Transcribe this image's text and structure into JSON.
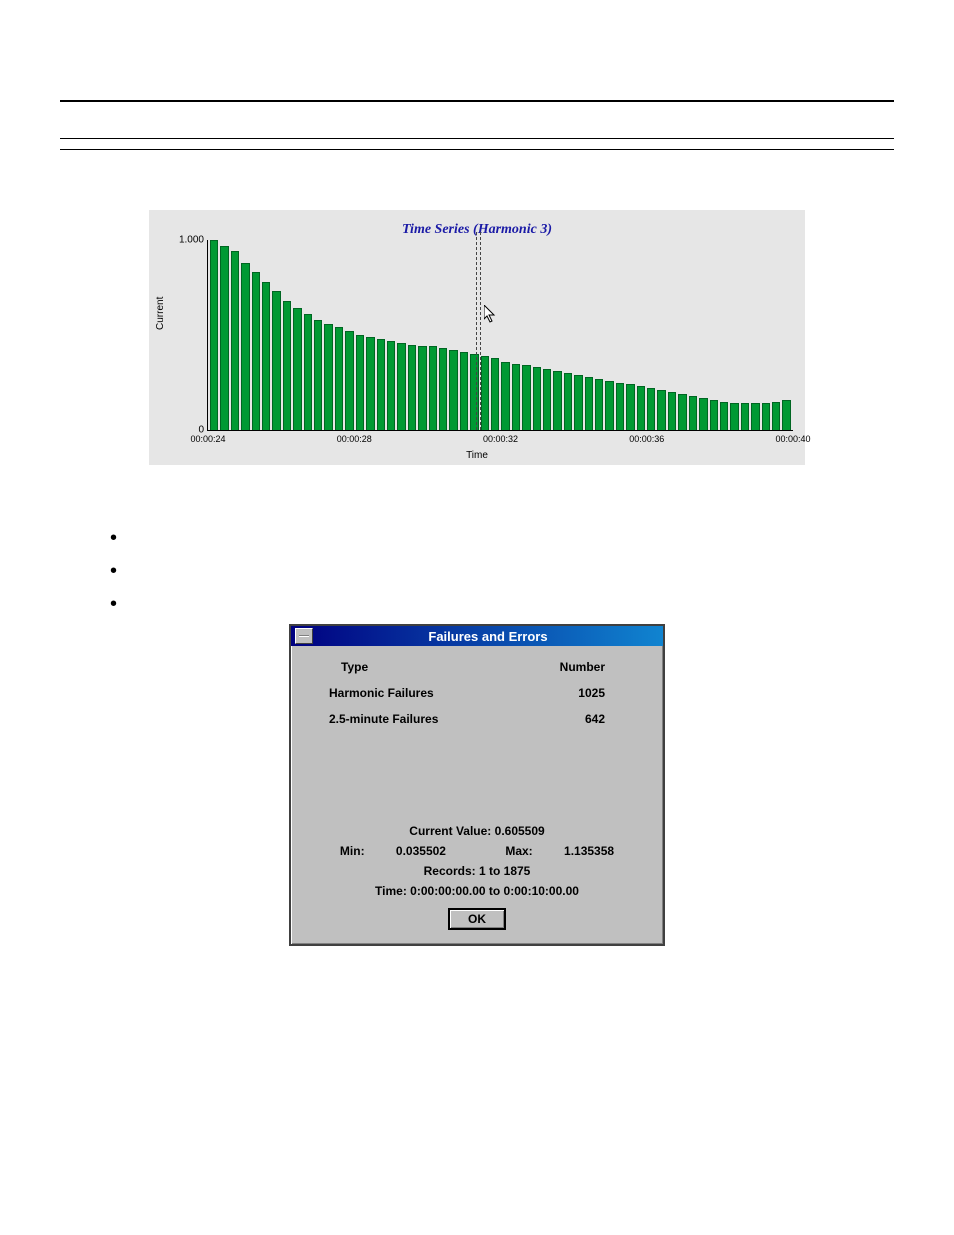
{
  "chart": {
    "type": "bar",
    "title": "Time Series (Harmonic 3)",
    "ylabel": "Current",
    "xlabel": "Time",
    "background_color": "#e6e6e6",
    "bar_color": "#009933",
    "bar_border_color": "#006622",
    "title_color": "#1a1aa6",
    "title_fontsize": 14,
    "label_fontsize": 10,
    "ylim": [
      0,
      1.0
    ],
    "yticks": [
      {
        "pos": 0,
        "label": "0"
      },
      {
        "pos": 1.0,
        "label": "1.000"
      }
    ],
    "xticks": [
      {
        "pos": 0.0,
        "label": "00:00:24"
      },
      {
        "pos": 0.25,
        "label": "00:00:28"
      },
      {
        "pos": 0.5,
        "label": "00:00:32"
      },
      {
        "pos": 0.75,
        "label": "00:00:36"
      },
      {
        "pos": 1.0,
        "label": "00:00:40"
      }
    ],
    "cursor_position": 0.458,
    "cursor_pointer_top": 0.34,
    "values": [
      1.0,
      0.97,
      0.94,
      0.88,
      0.83,
      0.78,
      0.73,
      0.68,
      0.64,
      0.61,
      0.58,
      0.56,
      0.54,
      0.52,
      0.5,
      0.49,
      0.48,
      0.47,
      0.46,
      0.45,
      0.44,
      0.44,
      0.43,
      0.42,
      0.41,
      0.4,
      0.39,
      0.38,
      0.36,
      0.35,
      0.34,
      0.33,
      0.32,
      0.31,
      0.3,
      0.29,
      0.28,
      0.27,
      0.26,
      0.25,
      0.24,
      0.23,
      0.22,
      0.21,
      0.2,
      0.19,
      0.18,
      0.17,
      0.16,
      0.15,
      0.14,
      0.14,
      0.14,
      0.14,
      0.15,
      0.16
    ]
  },
  "dialog": {
    "title": "Failures and Errors",
    "header_type": "Type",
    "header_number": "Number",
    "rows": [
      {
        "type": "Harmonic Failures",
        "number": "1025"
      },
      {
        "type": "2.5-minute Failures",
        "number": "642"
      }
    ],
    "current_label": "Current Value:",
    "current_value": "0.605509",
    "min_label": "Min:",
    "min_value": "0.035502",
    "max_label": "Max:",
    "max_value": "1.135358",
    "records_label": "Records:",
    "records_value": "1 to 1875",
    "time_label": "Time:",
    "time_value": "0:00:00:00.00 to 0:00:10:00.00",
    "ok_label": "OK",
    "titlebar_bg": "#000080",
    "body_bg": "#c0c0c0"
  }
}
